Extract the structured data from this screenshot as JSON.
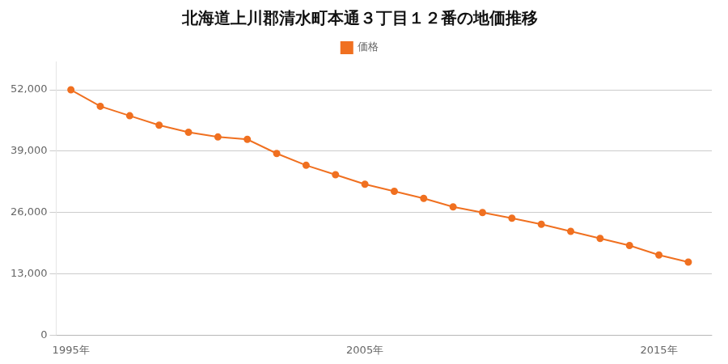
{
  "chart_data": {
    "type": "line",
    "title": "北海道上川郡清水町本通３丁目１２番の地価推移",
    "x": [
      1995,
      1996,
      1997,
      1998,
      1999,
      2000,
      2001,
      2002,
      2003,
      2004,
      2005,
      2006,
      2007,
      2008,
      2009,
      2010,
      2011,
      2012,
      2013,
      2014,
      2015,
      2016
    ],
    "series": [
      {
        "name": "価格",
        "color": "#F07020",
        "marker": "circle",
        "line_style": "solid",
        "values": [
          52000,
          48500,
          46500,
          44500,
          43000,
          42000,
          41500,
          38500,
          36000,
          34000,
          32000,
          30500,
          29000,
          27200,
          26000,
          24800,
          23500,
          22000,
          20500,
          19000,
          17000,
          15500
        ]
      }
    ],
    "xlim": [
      1994.5,
      2016.8
    ],
    "xticks": [
      {
        "value": 1995,
        "label": "1995年"
      },
      {
        "value": 2005,
        "label": "2005年"
      },
      {
        "value": 2015,
        "label": "2015年"
      }
    ],
    "ylim": [
      0,
      58000
    ],
    "yticks": [
      0,
      {
        "value": 13000,
        "label": "13,000"
      },
      {
        "value": 26000,
        "label": "26,000"
      },
      {
        "value": 39000,
        "label": "39,000"
      },
      {
        "value": 52000,
        "label": "52,000"
      }
    ],
    "grid": "y",
    "legend": "top"
  }
}
